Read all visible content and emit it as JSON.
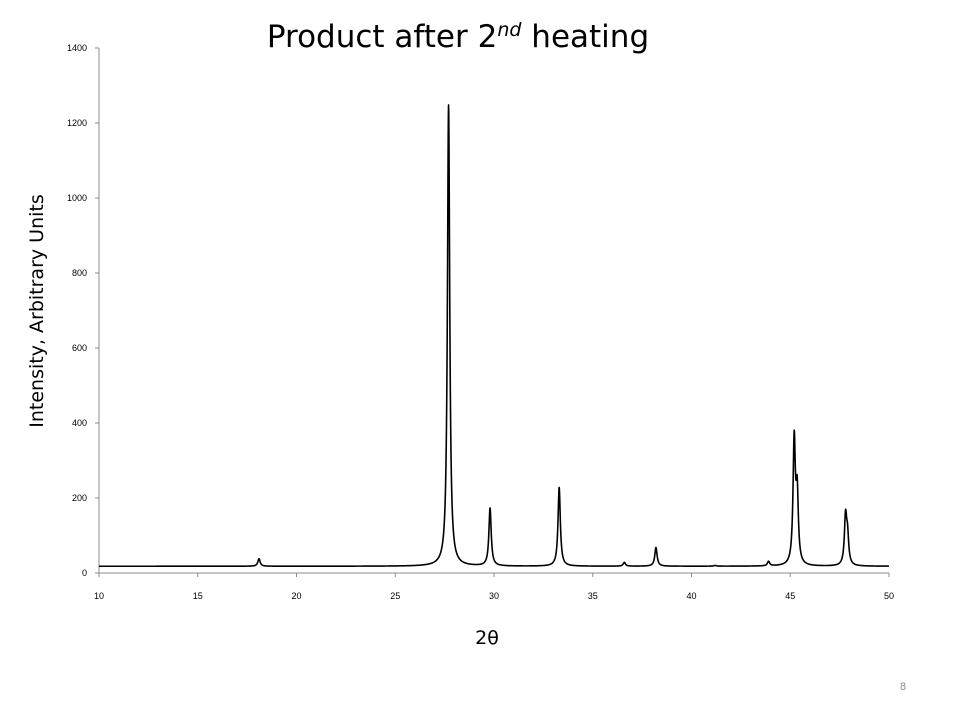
{
  "slide": {
    "page_number": "8"
  },
  "chart_data": {
    "type": "line",
    "title_parts": [
      "Product after 2",
      "nd",
      " heating"
    ],
    "xlabel": "2θ",
    "ylabel": "Intensity, Arbitrary Units",
    "xlim": [
      10,
      50
    ],
    "ylim": [
      0,
      1400
    ],
    "x_ticks": [
      10,
      15,
      20,
      25,
      30,
      35,
      40,
      45,
      50
    ],
    "y_ticks": [
      0,
      200,
      400,
      600,
      800,
      1000,
      1200,
      1400
    ],
    "grid": false,
    "legend": "none",
    "line_color": "#000000",
    "baseline": 18,
    "peaks": [
      {
        "x": 18.1,
        "y": 38
      },
      {
        "x": 27.7,
        "y": 1248
      },
      {
        "x": 29.8,
        "y": 172
      },
      {
        "x": 33.3,
        "y": 228
      },
      {
        "x": 36.6,
        "y": 28
      },
      {
        "x": 38.2,
        "y": 68
      },
      {
        "x": 41.2,
        "y": 20
      },
      {
        "x": 43.9,
        "y": 30
      },
      {
        "x": 45.2,
        "y": 348
      },
      {
        "x": 45.35,
        "y": 200
      },
      {
        "x": 47.8,
        "y": 145
      },
      {
        "x": 47.9,
        "y": 90
      }
    ]
  }
}
